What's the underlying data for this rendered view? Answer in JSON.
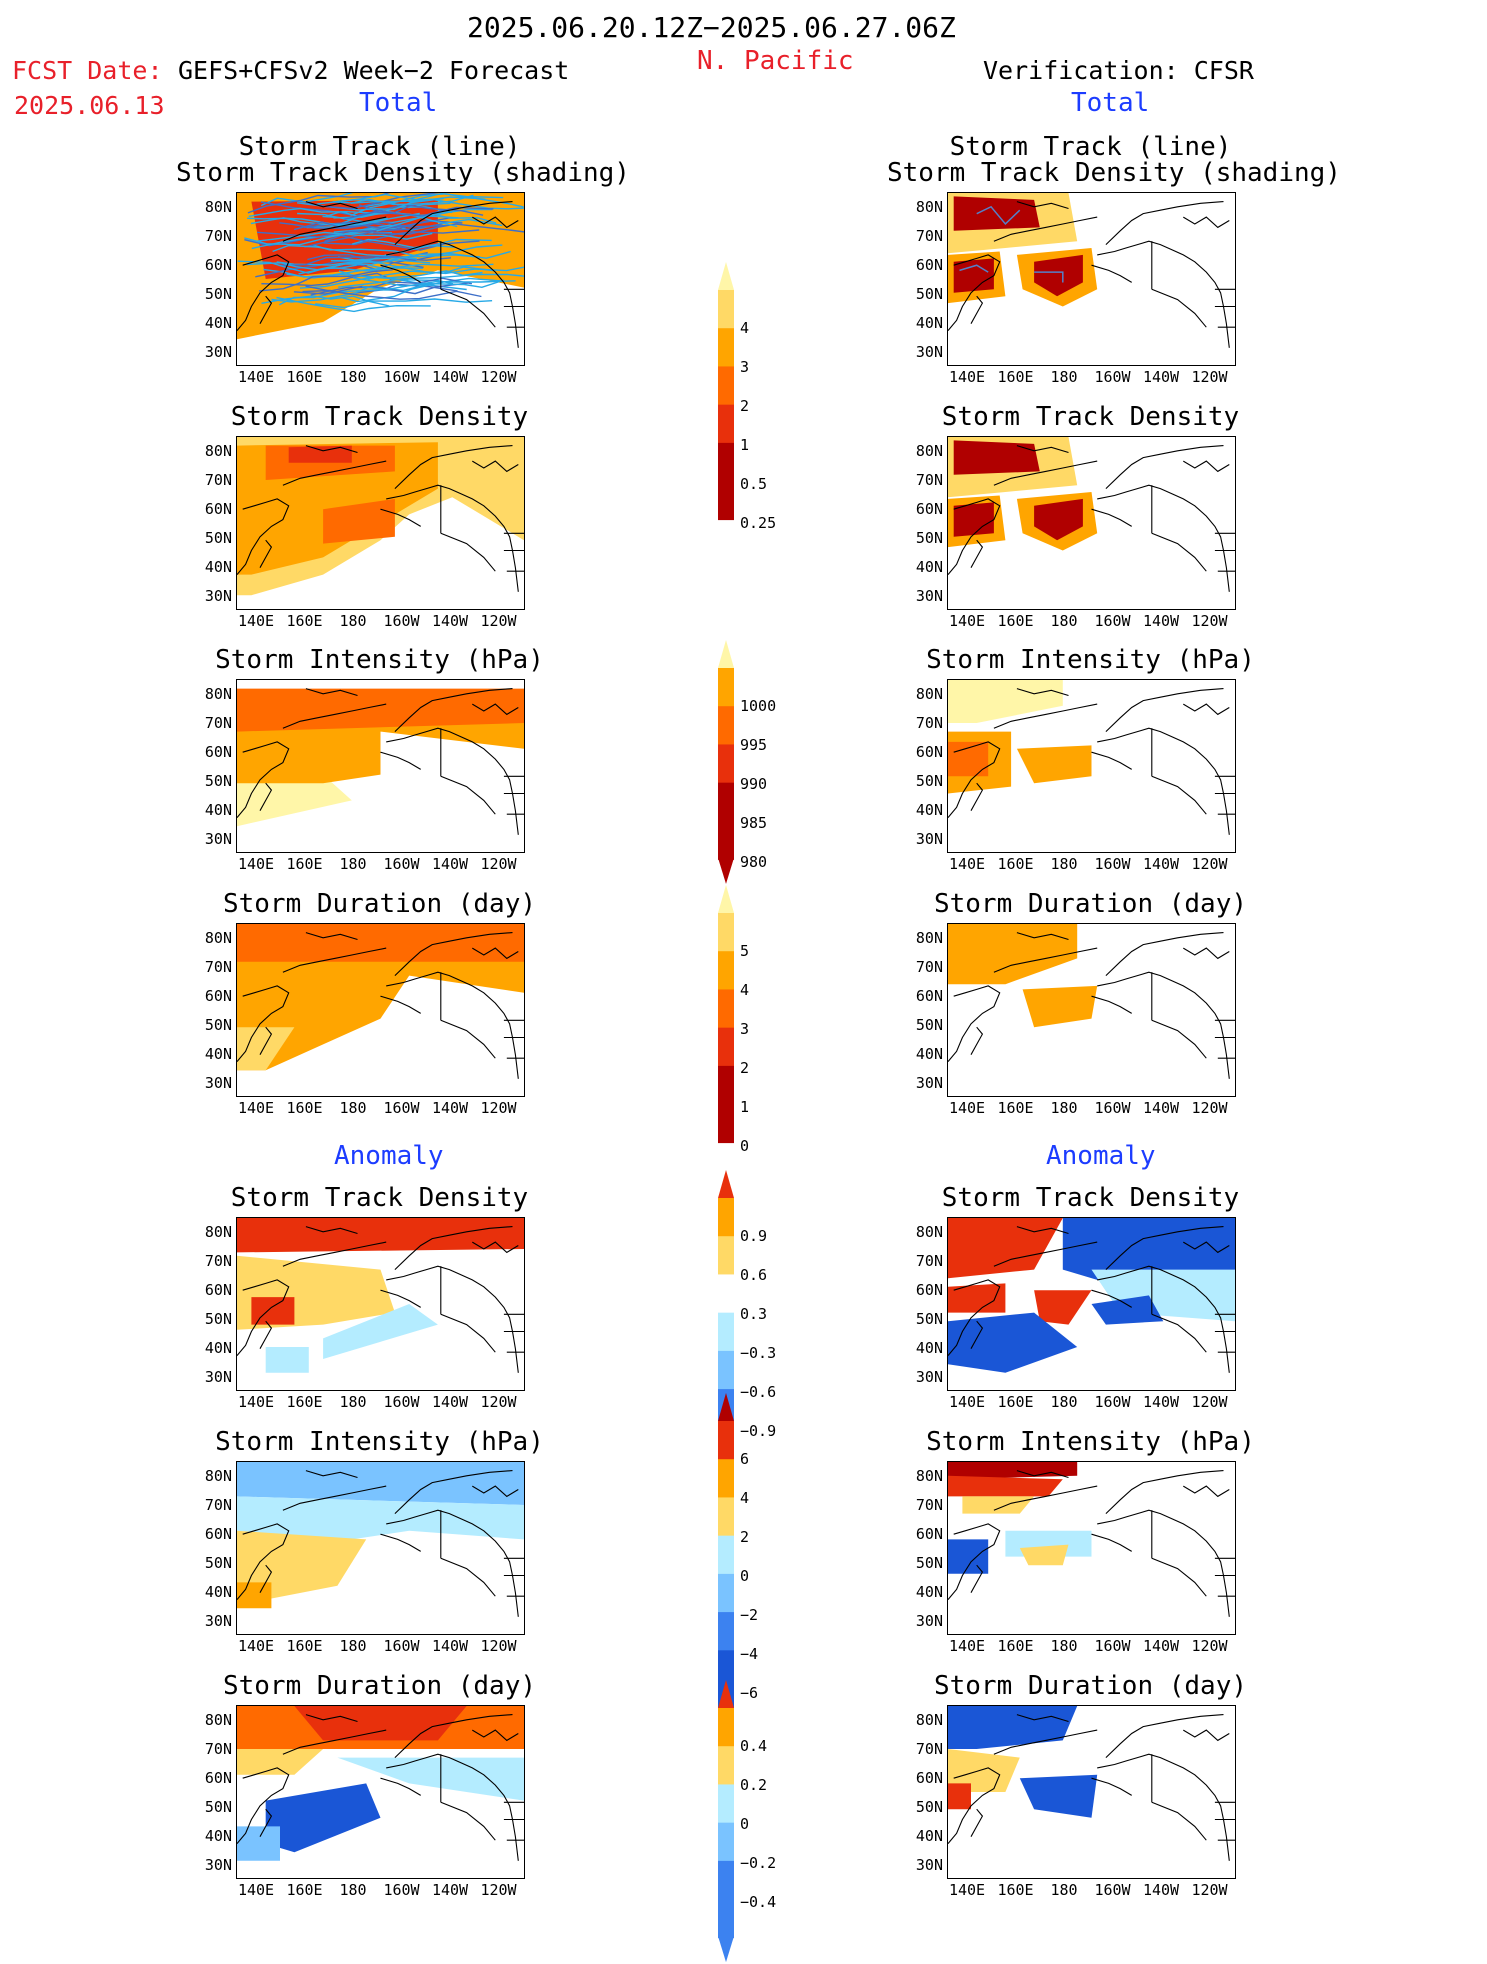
{
  "header": {
    "date_range": "2025.06.20.12Z−2025.06.27.06Z",
    "region": "N. Pacific",
    "fcst_date_label": "FCST Date:",
    "fcst_product": "GEFS+CFSv2 Week−2 Forecast",
    "fcst_date": "2025.06.13",
    "verification": "Verification: CFSR"
  },
  "sections": {
    "total_left": "Total",
    "total_right": "Total",
    "anomaly_left": "Anomaly",
    "anomaly_right": "Anomaly"
  },
  "titles": {
    "track_line": "Storm Track (line)",
    "track_density_shading": "Storm Track Density (shading)",
    "track_density": "Storm Track Density",
    "intensity": "Storm Intensity (hPa)",
    "duration": "Storm Duration (day)"
  },
  "axes": {
    "lat": [
      "80N",
      "70N",
      "60N",
      "50N",
      "40N",
      "30N"
    ],
    "lon": [
      "140E",
      "160E",
      "180",
      "160W",
      "140W",
      "120W"
    ]
  },
  "colorbars": {
    "density_total": [
      "4",
      "3",
      "2",
      "1",
      "0.5",
      "0.25"
    ],
    "intensity_total": [
      "1000",
      "995",
      "990",
      "985",
      "980"
    ],
    "duration_total": [
      "5",
      "4",
      "3",
      "2",
      "1",
      "0"
    ],
    "density_anom": [
      "0.9",
      "0.6",
      "0.3",
      "−0.3",
      "−0.6",
      "−0.9"
    ],
    "intensity_anom": [
      "6",
      "4",
      "2",
      "0",
      "−2",
      "−4",
      "−6"
    ],
    "duration_anom": [
      "0.4",
      "0.2",
      "0",
      "−0.2",
      "−0.4"
    ]
  },
  "colors": {
    "light_yellow": "#fff6a8",
    "yellow": "#ffd966",
    "orange": "#ffa500",
    "dark_orange": "#ff6a00",
    "red": "#e8300c",
    "dark_red": "#b00000",
    "light_blue": "#b4ecff",
    "sky_blue": "#7ac3ff",
    "blue": "#3c82f0",
    "dark_blue": "#1a56d6"
  }
}
